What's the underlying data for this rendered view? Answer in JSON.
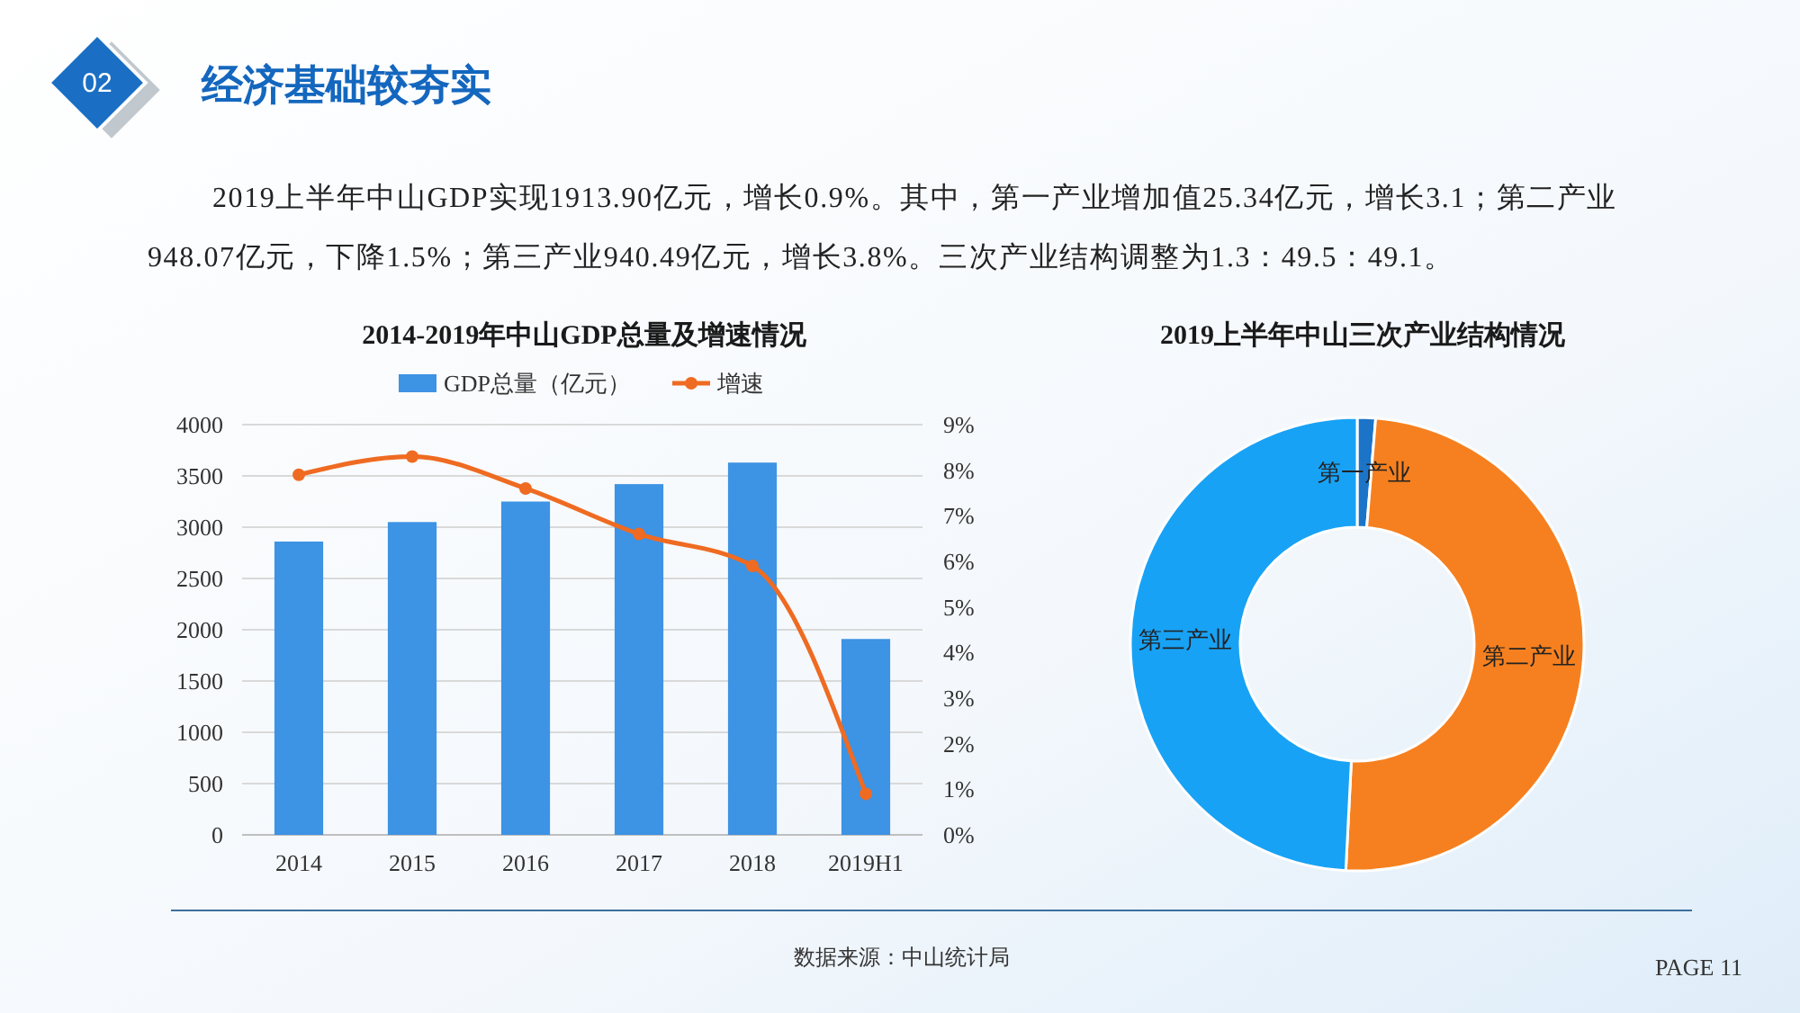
{
  "chart_data": [
    {
      "type": "other",
      "title": "经济基础较夯实",
      "annotations": [
        "02",
        "2019上半年中山GDP实现1913.90亿元，增长0.9%。其中，第一产业增加值25.34亿元，增长3.1；第二产业948.07亿元，下降1.5%；第三产业940.49亿元，增长3.8%。三次产业结构调整为1.3：49.5：49.1。"
      ]
    },
    {
      "type": "bar",
      "title": "2014-2019年中山GDP总量及增速情况",
      "categories": [
        "2014",
        "2015",
        "2016",
        "2017",
        "2018",
        "2019H1"
      ],
      "series": [
        {
          "name": "GDP总量（亿元）",
          "type": "bar",
          "color": "#3d93e4",
          "values": [
            2860,
            3050,
            3250,
            3420,
            3630,
            1910
          ]
        },
        {
          "name": "增速",
          "type": "line",
          "axis": "y2",
          "color": "#ef6b22",
          "values": [
            7.9,
            8.3,
            7.6,
            6.6,
            5.9,
            0.9
          ]
        }
      ],
      "ylim": [
        0,
        4000
      ],
      "yticks": [
        0,
        500,
        1000,
        1500,
        2000,
        2500,
        3000,
        3500,
        4000
      ],
      "y2lim": [
        0,
        9
      ],
      "y2ticks": [
        {
          "value": 0,
          "label": "0%"
        },
        {
          "value": 1,
          "label": "1%"
        },
        {
          "value": 2,
          "label": "2%"
        },
        {
          "value": 3,
          "label": "3%"
        },
        {
          "value": 4,
          "label": "4%"
        },
        {
          "value": 5,
          "label": "5%"
        },
        {
          "value": 6,
          "label": "6%"
        },
        {
          "value": 7,
          "label": "7%"
        },
        {
          "value": 8,
          "label": "8%"
        },
        {
          "value": 9,
          "label": "9%"
        }
      ],
      "grid": "y",
      "legend": "top",
      "marker": "circle"
    },
    {
      "type": "donut",
      "title": "2019上半年中山三次产业结构情况",
      "categories": [
        "第一产业",
        "第二产业",
        "第三产业"
      ],
      "values": [
        1.3,
        49.5,
        49.2
      ],
      "colors": [
        "#1c74c9",
        "#f6801f",
        "#18a2f5"
      ]
    },
    {
      "type": "other",
      "annotations": [
        "数据来源：中山统计局",
        "PAGE 11"
      ]
    }
  ]
}
